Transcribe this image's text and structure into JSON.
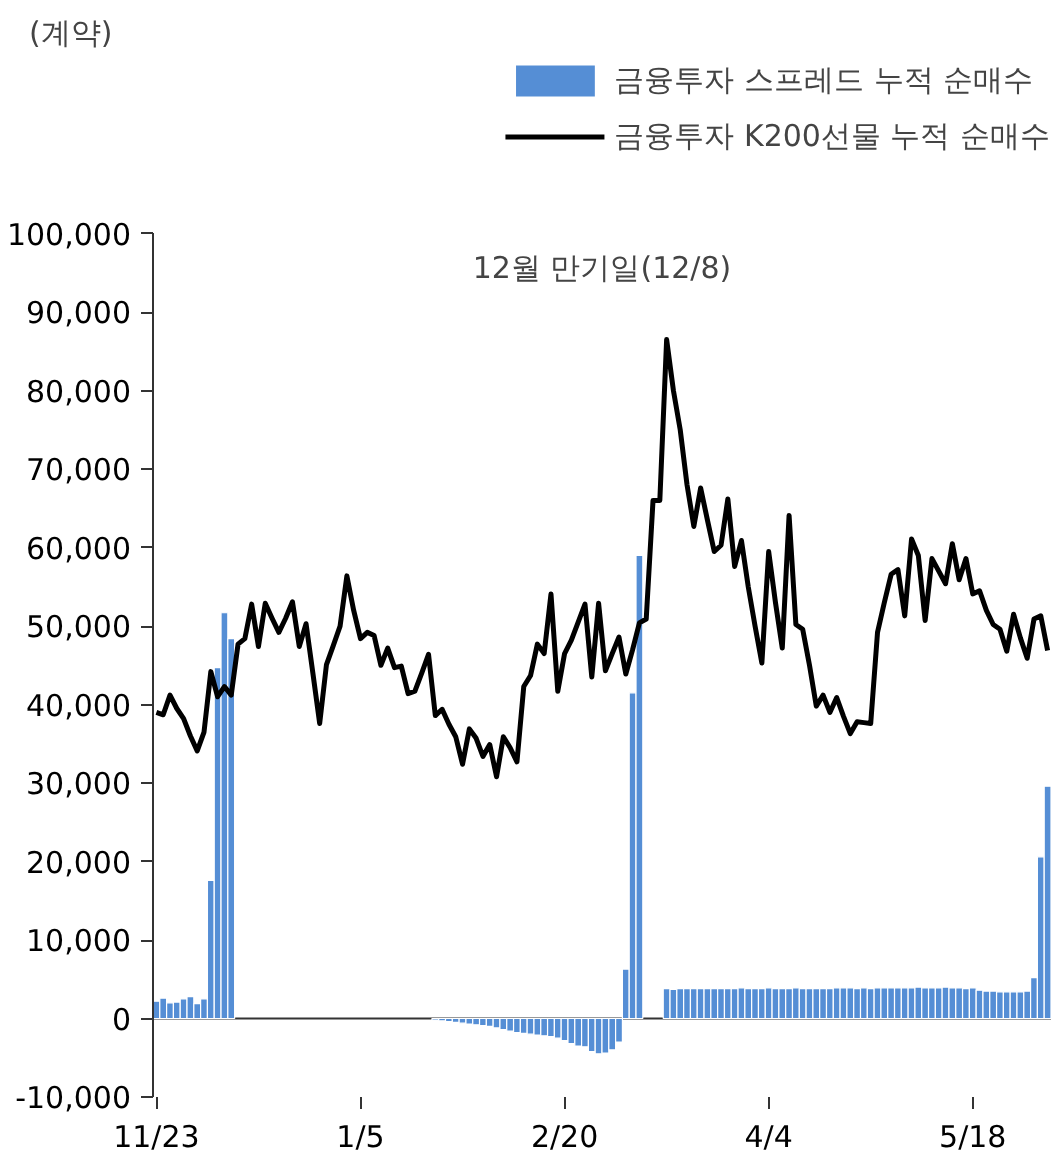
{
  "chart_data": {
    "type": "bar",
    "annotations": [
      "(계약)",
      "12월 만기일(12/8)"
    ],
    "categories": [
      "11/23",
      null,
      null,
      null,
      null,
      null,
      null,
      null,
      null,
      null,
      null,
      null,
      null,
      null,
      null,
      null,
      null,
      null,
      null,
      null,
      null,
      null,
      null,
      null,
      null,
      null,
      null,
      null,
      null,
      null,
      "1/5",
      null,
      null,
      null,
      null,
      null,
      null,
      null,
      null,
      null,
      null,
      null,
      null,
      null,
      null,
      null,
      null,
      null,
      null,
      null,
      null,
      null,
      null,
      null,
      null,
      null,
      null,
      null,
      null,
      null,
      "2/20",
      null,
      null,
      null,
      null,
      null,
      null,
      null,
      null,
      null,
      null,
      null,
      null,
      null,
      null,
      null,
      null,
      null,
      null,
      null,
      null,
      null,
      null,
      null,
      null,
      null,
      null,
      null,
      null,
      null,
      "4/4",
      null,
      null,
      null,
      null,
      null,
      null,
      null,
      null,
      null,
      null,
      null,
      null,
      null,
      null,
      null,
      null,
      null,
      null,
      null,
      null,
      null,
      null,
      null,
      null,
      null,
      null,
      null,
      null,
      null,
      "5/18",
      null,
      null,
      null,
      null,
      null,
      null,
      null,
      null,
      null,
      null,
      null
    ],
    "ylim": [
      -10000,
      100000
    ],
    "yticks": [
      {
        "value": -10000,
        "label": "-10,000"
      },
      {
        "value": 0,
        "label": "0"
      },
      {
        "value": 10000,
        "label": "10,000"
      },
      {
        "value": 20000,
        "label": "20,000"
      },
      {
        "value": 30000,
        "label": "30,000"
      },
      {
        "value": 40000,
        "label": "40,000"
      },
      {
        "value": 50000,
        "label": "50,000"
      },
      {
        "value": 60000,
        "label": "60,000"
      },
      {
        "value": 70000,
        "label": "70,000"
      },
      {
        "value": 80000,
        "label": "80,000"
      },
      {
        "value": 90000,
        "label": "90,000"
      },
      {
        "value": 100000,
        "label": "100,000"
      }
    ],
    "legend": "top right",
    "series": [
      {
        "name": "금융투자 스프레드 누적 순매수",
        "color": "#558ed5",
        "values": [
          2200,
          2600,
          2000,
          2100,
          2500,
          2800,
          1900,
          2500,
          17600,
          44700,
          51700,
          48400,
          null,
          null,
          null,
          null,
          null,
          null,
          null,
          null,
          null,
          null,
          null,
          null,
          null,
          null,
          null,
          null,
          null,
          null,
          null,
          null,
          null,
          null,
          null,
          null,
          null,
          null,
          null,
          null,
          null,
          -200,
          -300,
          -400,
          -500,
          -600,
          -700,
          -800,
          -900,
          -1000,
          -1200,
          -1400,
          -1600,
          -1800,
          -1900,
          -2000,
          -2100,
          -2200,
          -2300,
          -2500,
          -2800,
          -3200,
          -3500,
          -3600,
          -4200,
          -4500,
          -4400,
          -4000,
          -3000,
          6300,
          41500,
          59000,
          null,
          null,
          null,
          3800,
          3700,
          3800,
          3800,
          3800,
          3800,
          3800,
          3800,
          3800,
          3800,
          3800,
          3900,
          3800,
          3800,
          3800,
          3900,
          3800,
          3800,
          3800,
          3900,
          3800,
          3800,
          3800,
          3800,
          3800,
          3900,
          3900,
          3900,
          3800,
          3900,
          3800,
          3900,
          3900,
          3900,
          3900,
          3900,
          3900,
          4000,
          3900,
          3900,
          3900,
          4000,
          3900,
          3900,
          3800,
          3900,
          3600,
          3500,
          3500,
          3400,
          3400,
          3400,
          3400,
          3500,
          5200,
          20600,
          29600
        ]
      },
      {
        "name": "금융투자 K200선물 누적 순매수",
        "type": "line",
        "color": "#000000",
        "values": [
          39000,
          38700,
          41200,
          39500,
          38200,
          36000,
          34100,
          36500,
          44200,
          41000,
          42300,
          41200,
          47700,
          48400,
          52800,
          47400,
          52900,
          51000,
          49200,
          51000,
          53100,
          47400,
          50300,
          44000,
          37600,
          45100,
          47500,
          50000,
          56400,
          52000,
          48400,
          49200,
          48800,
          45000,
          47200,
          44700,
          44900,
          41400,
          41700,
          44000,
          46400,
          38600,
          39400,
          37500,
          35900,
          32400,
          36900,
          35700,
          33400,
          34900,
          30800,
          35900,
          34500,
          32700,
          42300,
          43700,
          47700,
          46500,
          54100,
          41700,
          46500,
          48200,
          50500,
          52800,
          43500,
          52900,
          44300,
          46500,
          48600,
          43900,
          47000,
          50400,
          50900,
          66000,
          66000,
          86500,
          80000,
          75000,
          68000,
          62700,
          67600,
          63500,
          59500,
          60300,
          66200,
          57600,
          60900,
          55000,
          50000,
          45300,
          59500,
          53000,
          47200,
          64100,
          50200,
          49600,
          45000,
          39800,
          41200,
          39000,
          40900,
          38500,
          36300,
          37800,
          37700,
          37600,
          49200,
          53000,
          56600,
          57200,
          51300,
          61100,
          59000,
          50700,
          58600,
          57000,
          55400,
          60500,
          55900,
          58600,
          54100,
          54500,
          52000,
          50200,
          49600,
          46800,
          51500,
          48500,
          45900,
          50900,
          51300,
          46900
        ]
      }
    ]
  }
}
